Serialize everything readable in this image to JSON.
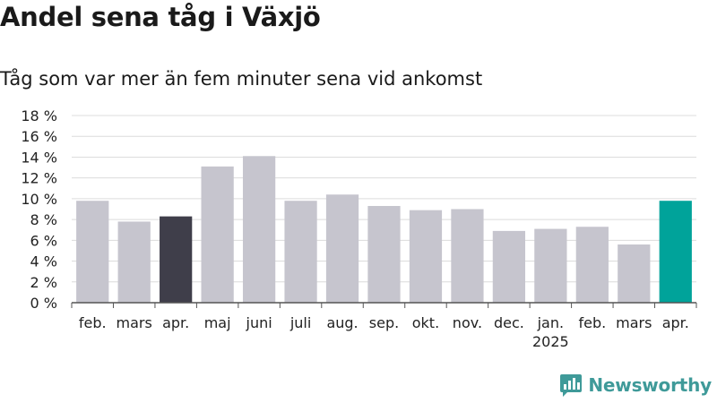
{
  "header": {
    "title": "Andel sena tåg i Växjö",
    "subtitle": "Tåg som var mer än fem minuter sena vid ankomst"
  },
  "brand": {
    "name": "Newsworthy",
    "icon": "newsworthy-logo-icon",
    "color": "#3f9a99"
  },
  "chart_data": {
    "type": "bar",
    "categories": [
      "feb.",
      "mars",
      "apr.",
      "maj",
      "juni",
      "juli",
      "aug.",
      "sep.",
      "okt.",
      "nov.",
      "dec.",
      "jan.",
      "feb.",
      "mars",
      "apr."
    ],
    "year_labels": [
      {
        "index": 11,
        "label": "2025"
      }
    ],
    "series": [
      {
        "values": [
          9.8,
          7.8,
          8.3,
          13.1,
          14.1,
          9.8,
          10.4,
          9.3,
          8.9,
          9.0,
          6.9,
          7.1,
          7.3,
          5.6,
          9.8
        ]
      }
    ],
    "bar_colors": [
      "#c6c5ce",
      "#c6c5ce",
      "#3f3e4a",
      "#c6c5ce",
      "#c6c5ce",
      "#c6c5ce",
      "#c6c5ce",
      "#c6c5ce",
      "#c6c5ce",
      "#c6c5ce",
      "#c6c5ce",
      "#c6c5ce",
      "#c6c5ce",
      "#c6c5ce",
      "#00a39a"
    ],
    "yticks": [
      "0 %",
      "2 %",
      "4 %",
      "6 %",
      "8 %",
      "10 %",
      "12 %",
      "14 %",
      "16 %",
      "18 %"
    ],
    "ylim": [
      0,
      18
    ],
    "grid": true,
    "xlabel": "",
    "ylabel": ""
  }
}
